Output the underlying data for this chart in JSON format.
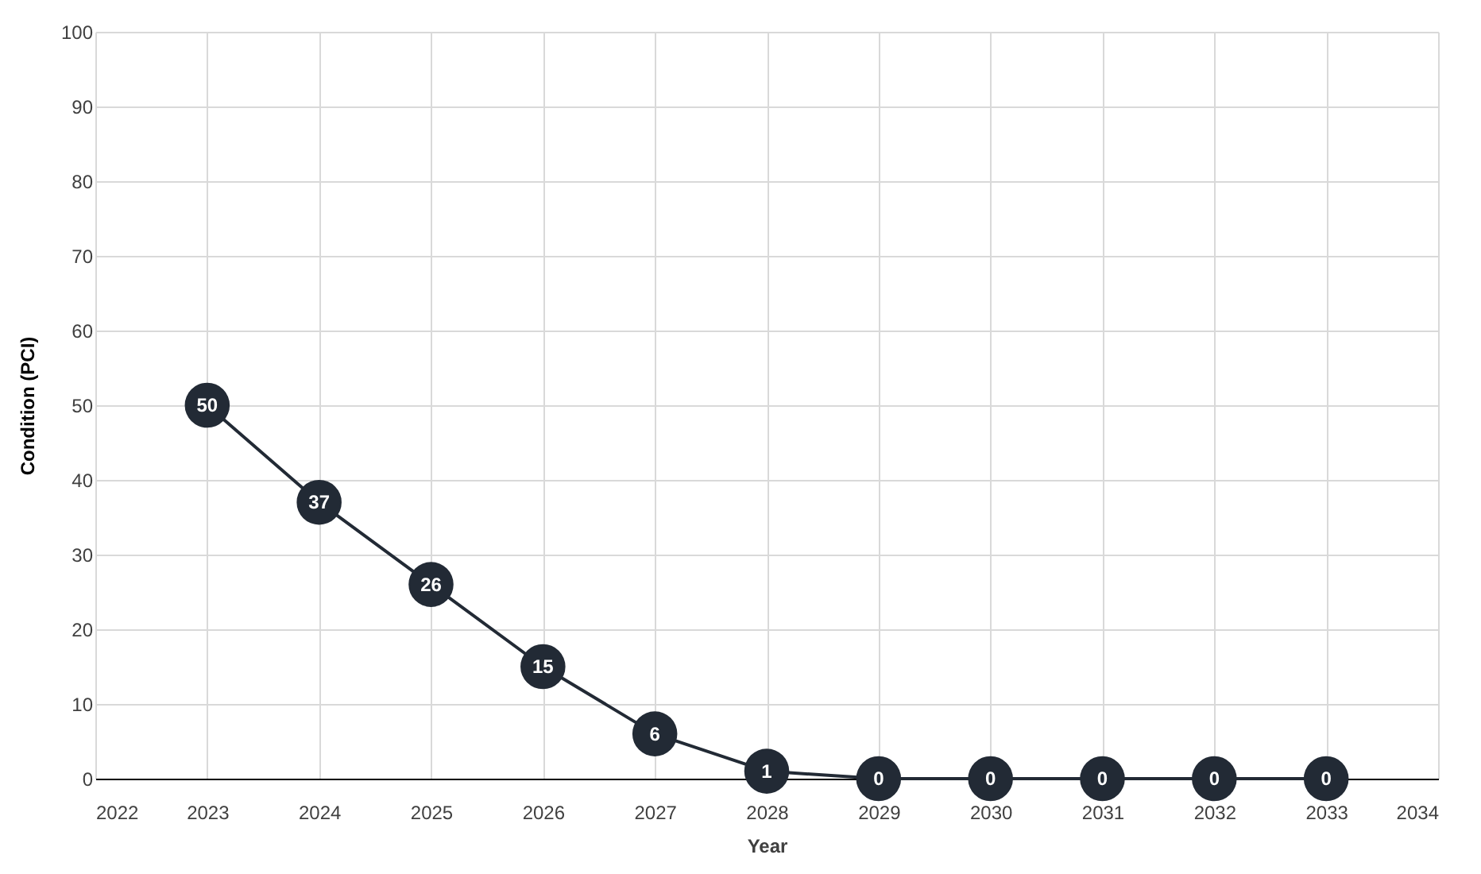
{
  "chart_data": {
    "type": "line",
    "xlabel": "Year",
    "ylabel": "Condition (PCI)",
    "x": [
      2023,
      2024,
      2025,
      2026,
      2027,
      2028,
      2029,
      2030,
      2031,
      2032,
      2033
    ],
    "series": [
      {
        "color": "#222a35",
        "values": [
          50,
          37,
          26,
          15,
          6,
          1,
          0,
          0,
          0,
          0,
          0
        ]
      }
    ],
    "xlim": [
      2022,
      2034
    ],
    "xticks": [
      2022,
      2023,
      2024,
      2025,
      2026,
      2027,
      2028,
      2029,
      2030,
      2031,
      2032,
      2033,
      2034
    ],
    "ylim": [
      0,
      100
    ],
    "yticks": [
      0,
      10,
      20,
      30,
      40,
      50,
      60,
      70,
      80,
      90,
      100
    ],
    "grid": true,
    "marker": "circle",
    "line_style": "solid",
    "data_labels": true
  }
}
